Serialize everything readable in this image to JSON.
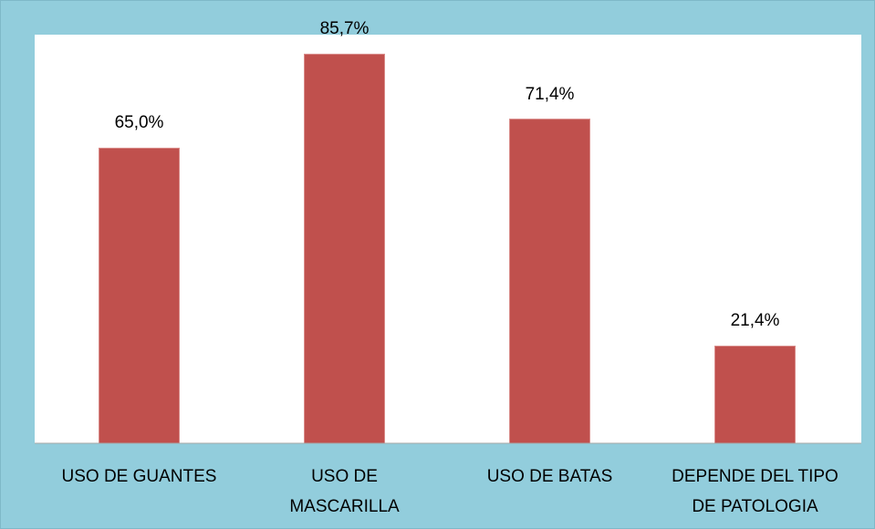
{
  "chart_data": {
    "type": "bar",
    "categories": [
      "USO DE GUANTES",
      "USO DE\nMASCARILLA",
      "USO DE BATAS",
      "DEPENDE DEL TIPO\nDE PATOLOGIA"
    ],
    "values": [
      65.0,
      85.7,
      71.4,
      21.4
    ],
    "value_labels": [
      "65,0%",
      "85,7%",
      "71,4%",
      "21,4%"
    ],
    "color": "#c0504d",
    "ylim": [
      0,
      90
    ]
  }
}
